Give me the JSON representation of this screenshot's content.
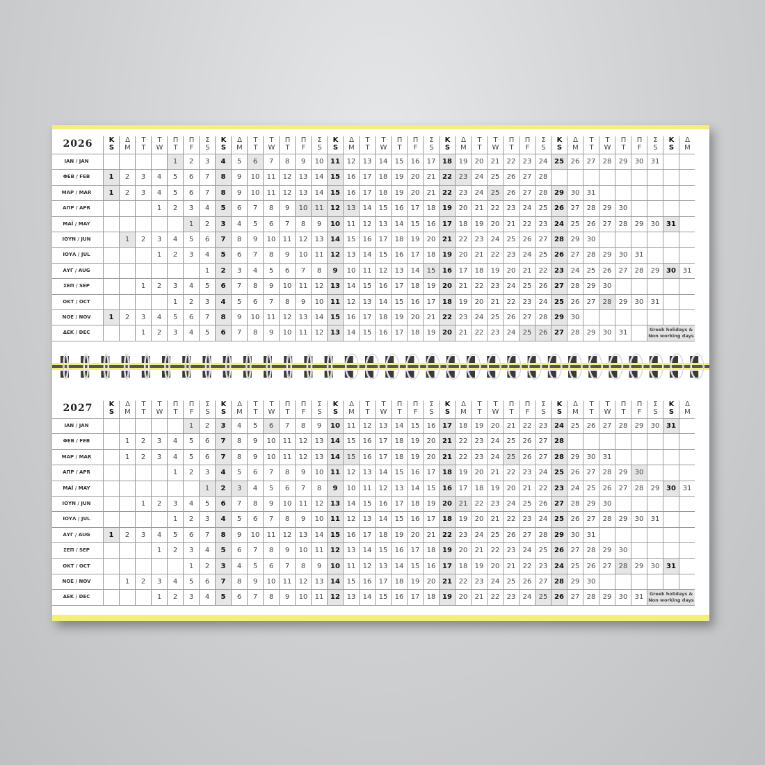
{
  "weekday_header": {
    "greek": [
      "Κ",
      "Δ",
      "Τ",
      "Τ",
      "Π",
      "Π",
      "Σ"
    ],
    "english": [
      "S",
      "M",
      "T",
      "W",
      "T",
      "F",
      "S"
    ]
  },
  "legend": "Greek holidays & Non working days",
  "colors": {
    "accent_yellow": "#f3ef7a",
    "shade": "#e6e6e6",
    "grid": "#9a9a9a"
  },
  "calendars": [
    {
      "year": "2026",
      "months": [
        {
          "label": "IAN / JAN",
          "first_weekday": 4,
          "days": 31,
          "holidays": [
            1,
            6
          ]
        },
        {
          "label": "ΦΕΒ / FEB",
          "first_weekday": 0,
          "days": 28,
          "holidays": [
            23
          ]
        },
        {
          "label": "ΜΑΡ / MAR",
          "first_weekday": 0,
          "days": 31,
          "holidays": [
            25
          ]
        },
        {
          "label": "ΑΠΡ / APR",
          "first_weekday": 3,
          "days": 30,
          "holidays": [
            10,
            11,
            13
          ]
        },
        {
          "label": "ΜΑΪ / MAY",
          "first_weekday": 5,
          "days": 31,
          "holidays": [
            1
          ]
        },
        {
          "label": "ΙΟΥΝ / JUN",
          "first_weekday": 1,
          "days": 30,
          "holidays": [
            1
          ]
        },
        {
          "label": "ΙΟΥΛ / JUL",
          "first_weekday": 3,
          "days": 31,
          "holidays": []
        },
        {
          "label": "ΑΥΓ / AUG",
          "first_weekday": 6,
          "days": 31,
          "holidays": [
            15
          ]
        },
        {
          "label": "ΣΕΠ / SEP",
          "first_weekday": 2,
          "days": 30,
          "holidays": []
        },
        {
          "label": "ΟΚΤ / OCT",
          "first_weekday": 4,
          "days": 31,
          "holidays": [
            28
          ]
        },
        {
          "label": "ΝΟΕ / NOV",
          "first_weekday": 0,
          "days": 30,
          "holidays": []
        },
        {
          "label": "ΔΕΚ / DEC",
          "first_weekday": 2,
          "days": 31,
          "holidays": [
            25,
            26
          ]
        }
      ]
    },
    {
      "year": "2027",
      "months": [
        {
          "label": "IAN / JAN",
          "first_weekday": 5,
          "days": 31,
          "holidays": [
            1,
            6
          ]
        },
        {
          "label": "ΦΕΒ / FEB",
          "first_weekday": 1,
          "days": 28,
          "holidays": []
        },
        {
          "label": "ΜΑΡ / MAR",
          "first_weekday": 1,
          "days": 31,
          "holidays": [
            15,
            25
          ]
        },
        {
          "label": "ΑΠΡ / APR",
          "first_weekday": 4,
          "days": 30,
          "holidays": [
            30
          ]
        },
        {
          "label": "ΜΑΪ / MAY",
          "first_weekday": 6,
          "days": 31,
          "holidays": [
            1,
            3
          ]
        },
        {
          "label": "ΙΟΥΝ / JUN",
          "first_weekday": 2,
          "days": 30,
          "holidays": [
            21
          ]
        },
        {
          "label": "ΙΟΥΛ / JUL",
          "first_weekday": 4,
          "days": 31,
          "holidays": []
        },
        {
          "label": "ΑΥΓ / AUG",
          "first_weekday": 0,
          "days": 31,
          "holidays": [
            15
          ]
        },
        {
          "label": "ΣΕΠ / SEP",
          "first_weekday": 3,
          "days": 30,
          "holidays": []
        },
        {
          "label": "ΟΚΤ / OCT",
          "first_weekday": 5,
          "days": 31,
          "holidays": [
            28
          ]
        },
        {
          "label": "ΝΟΕ / NOV",
          "first_weekday": 1,
          "days": 30,
          "holidays": []
        },
        {
          "label": "ΔΕΚ / DEC",
          "first_weekday": 3,
          "days": 31,
          "holidays": [
            25
          ]
        }
      ]
    }
  ]
}
